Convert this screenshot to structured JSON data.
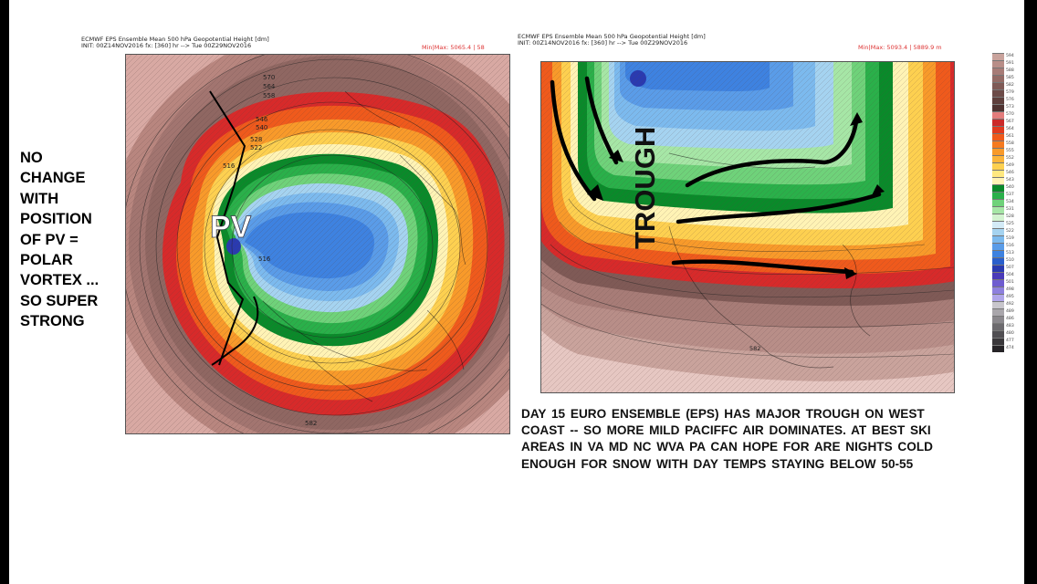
{
  "side_note": "NO\nCHANGE\nWITH\nPOSITION\nOF  PV =\nPOLAR\nVORTEX ...\nSO  SUPER\nSTRONG",
  "left_map": {
    "title": "ECMWF EPS Ensemble Mean 500 hPa Geopotential Height [dm]",
    "init": "INIT: 00Z14NOV2016  fx: [360] hr  -->  Tue 00Z29NOV2016",
    "minmax": "Min|Max: 5065.4 | 58",
    "overlay_label": "PV",
    "contour_labels": [
      "570",
      "564",
      "558",
      "546",
      "540",
      "528",
      "522",
      "516",
      "516",
      "582"
    ]
  },
  "right_map": {
    "title": "ECMWF EPS Ensemble Mean 500 hPa Geopotential Height [dm]",
    "init": "INIT: 00Z14NOV2016  fx: [360] hr  -->  Tue 00Z29NOV2016",
    "minmax": "Min|Max: 5093.4 | 5889.9 m",
    "overlay_label": "TROUGH",
    "contour_labels": [
      "582"
    ]
  },
  "colorbar": {
    "labels": [
      "594",
      "591",
      "588",
      "585",
      "582",
      "579",
      "576",
      "573",
      "570",
      "567",
      "564",
      "561",
      "558",
      "555",
      "552",
      "549",
      "546",
      "543",
      "540",
      "537",
      "534",
      "531",
      "528",
      "525",
      "522",
      "519",
      "516",
      "513",
      "510",
      "507",
      "504",
      "501",
      "498",
      "495",
      "492",
      "489",
      "486",
      "483",
      "480",
      "477",
      "474"
    ],
    "colors": [
      "#c9a39c",
      "#b88e88",
      "#a77c77",
      "#946b66",
      "#7f5a56",
      "#6c4b48",
      "#5e3f3c",
      "#4f3331",
      "#e37c7c",
      "#cc2a2a",
      "#e03a20",
      "#ef5a1c",
      "#f57a20",
      "#f89a2a",
      "#fbb43a",
      "#fdd050",
      "#ffe880",
      "#fff3b5",
      "#0a8a2a",
      "#2ab04a",
      "#6fd27a",
      "#a6e6a6",
      "#d3f3d0",
      "#d3eaf6",
      "#a5d3f0",
      "#7cbaee",
      "#5a9ce8",
      "#3e82e0",
      "#2a5fcc",
      "#2a3ab0",
      "#4a3ab8",
      "#6e5cd0",
      "#8e80de",
      "#b0a6ea",
      "#c8c6cc",
      "#a9a6ab",
      "#8a878c",
      "#6c6a6e",
      "#504e52",
      "#3a383b",
      "#262427"
    ]
  },
  "caption": "DAY 15  EURO ENSEMBLE  (EPS)   HAS   MAJOR  TROUGH ON WEST\nCOAST -- SO MORE MILD PACIFFC AIR  DOMINATES. AT BEST  SKI\nAREAS  IN  VA MD   NC  WVA PA  CAN HOPE FOR  ARE  NIGHTS COLD\nENOUGH  FOR SNOW WITH DAY TEMPS  STAYING BELOW  50-55"
}
